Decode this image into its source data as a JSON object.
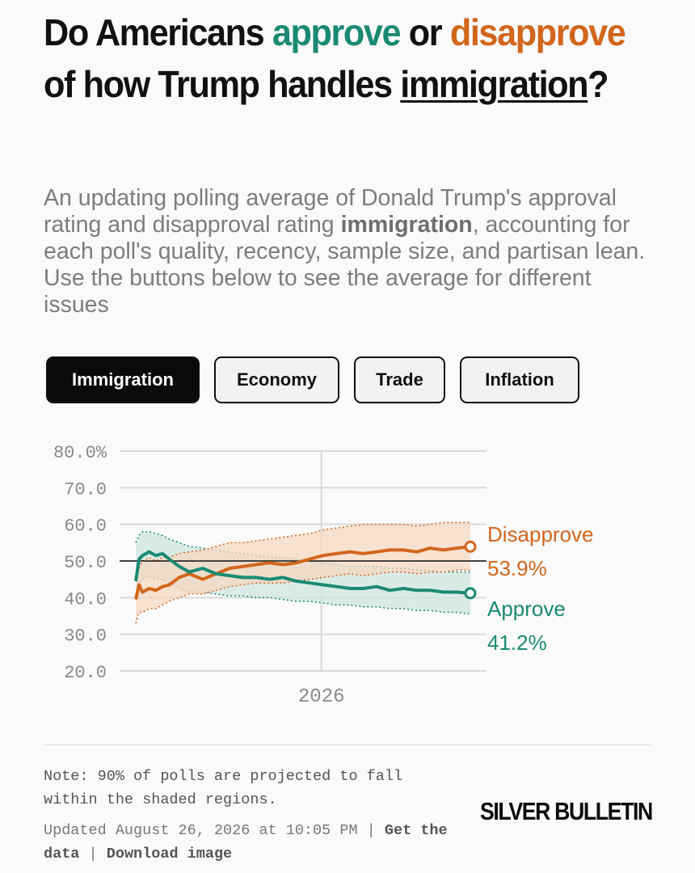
{
  "headline": {
    "part1": "Do Americans ",
    "approve_word": "approve",
    "part2": " or ",
    "disapprove_word": "disapprove",
    "part3": " of how Trump handles ",
    "issue_word": "immigration",
    "part4": "?"
  },
  "subtitle": {
    "part1": "An updating polling average of Donald Trump's approval rating and disapproval rating ",
    "issue_bold": "immigration",
    "part2": ", accounting for each poll's quality, recency, sample size, and partisan lean. Use the buttons below to see the average for different issues"
  },
  "tabs": [
    {
      "label": "Immigration",
      "active": true
    },
    {
      "label": "Economy",
      "active": false
    },
    {
      "label": "Trade",
      "active": false
    },
    {
      "label": "Inflation",
      "active": false
    }
  ],
  "colors": {
    "approve": "#1a8a73",
    "disapprove": "#d2661c",
    "approve_band": "#cfe6df",
    "disapprove_band": "#f6d8c2",
    "grid": "#d9d9d9",
    "tick": "#8a8a8a"
  },
  "chart_data": {
    "type": "line",
    "y_ticks": [
      "80.0%",
      "70.0",
      "60.0",
      "50.0",
      "40.0",
      "30.0",
      "20.0"
    ],
    "y_tick_values": [
      80,
      70,
      60,
      50,
      40,
      30,
      20
    ],
    "ylim": [
      20,
      80
    ],
    "x_tick_label": "2026",
    "x_tick_position": 0.55,
    "reference_line": 50,
    "series": [
      {
        "name": "Disapprove",
        "color": "#d2661c",
        "end_value_label": "53.9%",
        "x": [
          0,
          0.01,
          0.02,
          0.04,
          0.06,
          0.08,
          0.1,
          0.13,
          0.16,
          0.2,
          0.24,
          0.28,
          0.32,
          0.36,
          0.4,
          0.44,
          0.48,
          0.52,
          0.56,
          0.6,
          0.64,
          0.68,
          0.72,
          0.76,
          0.8,
          0.84,
          0.88,
          0.92,
          0.96,
          1.0
        ],
        "values": [
          39.5,
          43.5,
          41.5,
          42.5,
          42.0,
          43.0,
          43.5,
          45.5,
          46.5,
          45.0,
          46.5,
          48.0,
          48.5,
          49.0,
          49.5,
          49.0,
          49.5,
          50.5,
          51.5,
          52.0,
          52.5,
          52.0,
          52.5,
          53.0,
          53.0,
          52.5,
          53.5,
          53.0,
          53.5,
          53.9
        ],
        "band_upper": [
          46,
          48,
          50,
          51,
          50,
          51,
          51,
          52,
          52.5,
          53,
          54,
          55,
          55,
          55.5,
          56,
          56.5,
          57,
          57.5,
          58.5,
          59,
          59.5,
          60,
          60,
          60,
          60,
          59.5,
          60,
          60.5,
          60.5,
          60.5
        ],
        "band_lower": [
          33,
          36,
          36,
          37,
          37,
          38,
          39,
          40,
          41,
          41,
          42,
          43,
          43.5,
          44,
          44,
          44,
          44.5,
          45,
          45.5,
          46,
          46.5,
          46,
          46.5,
          47,
          47,
          46.5,
          47,
          47,
          47.5,
          47.5
        ]
      },
      {
        "name": "Approve",
        "color": "#1a8a73",
        "end_value_label": "41.2%",
        "x": [
          0,
          0.01,
          0.02,
          0.04,
          0.06,
          0.08,
          0.1,
          0.13,
          0.16,
          0.2,
          0.24,
          0.28,
          0.32,
          0.36,
          0.4,
          0.44,
          0.48,
          0.52,
          0.56,
          0.6,
          0.64,
          0.68,
          0.72,
          0.76,
          0.8,
          0.84,
          0.88,
          0.92,
          0.96,
          1.0
        ],
        "values": [
          44.5,
          50.5,
          51.5,
          52.5,
          51.5,
          52.0,
          50.5,
          48.5,
          47.0,
          48.0,
          46.5,
          46.0,
          45.5,
          45.5,
          45.0,
          45.5,
          44.5,
          44.0,
          43.5,
          43.0,
          42.5,
          42.5,
          43.0,
          42.0,
          42.5,
          42.0,
          42.0,
          41.5,
          41.5,
          41.2
        ],
        "band_upper": [
          55,
          57,
          58,
          58,
          57.5,
          57,
          56,
          55,
          54,
          53.5,
          53,
          52.5,
          52,
          51.5,
          51,
          51,
          50.5,
          50,
          49.5,
          49,
          48.5,
          48.5,
          48.5,
          48,
          48,
          47.5,
          47.5,
          47,
          47,
          47
        ],
        "band_lower": [
          40,
          44,
          45,
          46,
          45,
          45,
          44,
          42.5,
          41.5,
          41.5,
          41,
          40.5,
          40.5,
          40,
          40,
          39.5,
          39,
          39,
          38.5,
          38,
          38,
          37.5,
          37.5,
          37,
          37,
          36.5,
          36.5,
          36,
          36,
          35.5
        ]
      }
    ]
  },
  "footer": {
    "note": "Note: 90% of polls are projected to fall within the shaded regions.",
    "updated": "Updated August 26, 2026 at 10:05 PM",
    "sep1": " | ",
    "get_data": "Get the data",
    "sep2": " | ",
    "download": "Download image",
    "brand": "SILVER BULLETIN"
  }
}
